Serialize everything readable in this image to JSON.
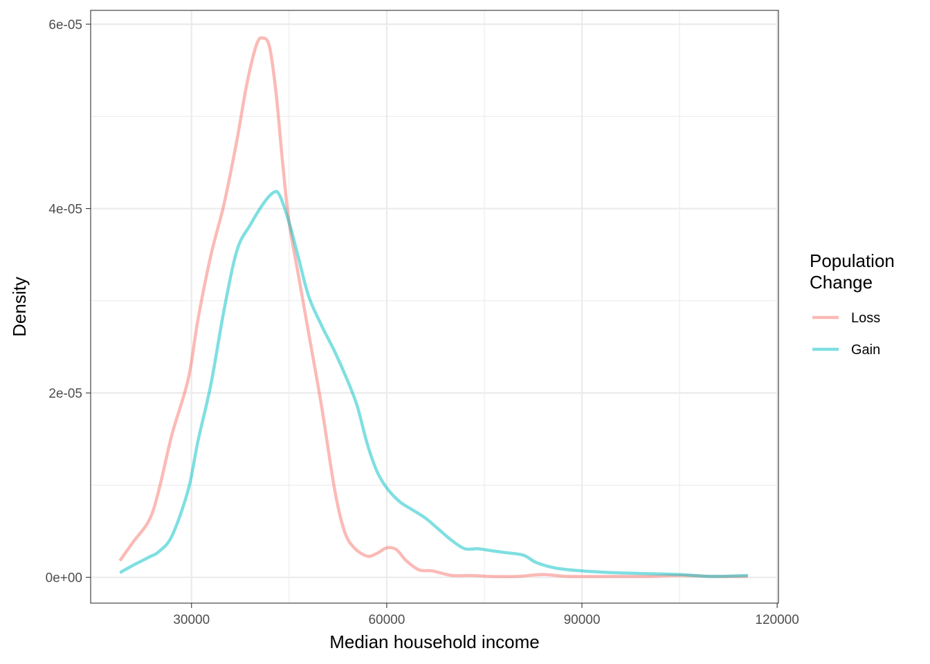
{
  "chart_data": {
    "type": "line",
    "xlabel": "Median household income",
    "ylabel": "Density",
    "xlim": [
      14500,
      120200
    ],
    "ylim": [
      -2.8e-06,
      6.15e-05
    ],
    "x_ticks": [
      30000,
      60000,
      90000,
      120000
    ],
    "x_tick_labels": [
      "30000",
      "60000",
      "90000",
      "120000"
    ],
    "x_minor": [
      45000,
      75000,
      105000
    ],
    "y_ticks": [
      0,
      2e-05,
      4e-05,
      6e-05
    ],
    "y_tick_labels": [
      "0e+00",
      "2e-05",
      "4e-05",
      "6e-05"
    ],
    "y_minor": [
      1e-05,
      3e-05,
      5e-05
    ],
    "grid": true,
    "legend": {
      "title": "Population\nChange",
      "position": "right"
    },
    "series": [
      {
        "name": "Loss",
        "color": "#F8766D",
        "x": [
          19000,
          21000,
          23500,
          25000,
          27000,
          29500,
          31000,
          33000,
          35000,
          37000,
          38500,
          40000,
          41000,
          42000,
          43000,
          44000,
          45000,
          46500,
          48000,
          50000,
          52000,
          53500,
          55000,
          57000,
          58500,
          60000,
          61500,
          63000,
          65000,
          67000,
          70000,
          73000,
          76000,
          80000,
          84000,
          88000,
          95000,
          100000,
          105000,
          110000,
          115500
        ],
        "y": [
          1.8e-06,
          3.8e-06,
          6.2e-06,
          9.5e-06,
          1.55e-05,
          2.15e-05,
          2.8e-05,
          3.5e-05,
          4.05e-05,
          4.75e-05,
          5.35e-05,
          5.78e-05,
          5.85e-05,
          5.75e-05,
          5.25e-05,
          4.5e-05,
          3.85e-05,
          3.25e-05,
          2.65e-05,
          1.85e-05,
          9.5e-06,
          5e-06,
          3.2e-06,
          2.3e-06,
          2.6e-06,
          3.2e-06,
          3e-06,
          1.8e-06,
          8e-07,
          7e-07,
          2e-07,
          2e-07,
          1e-07,
          1e-07,
          3e-07,
          1e-07,
          1e-07,
          1e-07,
          2e-07,
          1e-07,
          1e-07
        ]
      },
      {
        "name": "Gain",
        "color": "#00BFC4",
        "x": [
          19000,
          21000,
          23500,
          25000,
          27000,
          29500,
          31000,
          33000,
          35000,
          37000,
          39000,
          41000,
          42500,
          43500,
          45000,
          46500,
          48000,
          50000,
          52000,
          54000,
          55500,
          57000,
          58500,
          60000,
          62000,
          64000,
          66000,
          68000,
          70000,
          72000,
          74000,
          76000,
          78000,
          81000,
          83000,
          86000,
          90000,
          95000,
          100000,
          105000,
          110000,
          115500
        ],
        "y": [
          5e-07,
          1.3e-06,
          2.2e-06,
          2.8e-06,
          4.5e-06,
          9.5e-06,
          1.48e-05,
          2.1e-05,
          2.9e-05,
          3.55e-05,
          3.82e-05,
          4.05e-05,
          4.17e-05,
          4.15e-05,
          3.85e-05,
          3.45e-05,
          3.05e-05,
          2.73e-05,
          2.45e-05,
          2.13e-05,
          1.85e-05,
          1.45e-05,
          1.15e-05,
          9.7e-06,
          8.2e-06,
          7.3e-06,
          6.4e-06,
          5.2e-06,
          4e-06,
          3.1e-06,
          3.1e-06,
          2.9e-06,
          2.7e-06,
          2.4e-06,
          1.6e-06,
          1e-06,
          7e-07,
          5e-07,
          4e-07,
          3e-07,
          1e-07,
          2e-07
        ]
      }
    ]
  }
}
